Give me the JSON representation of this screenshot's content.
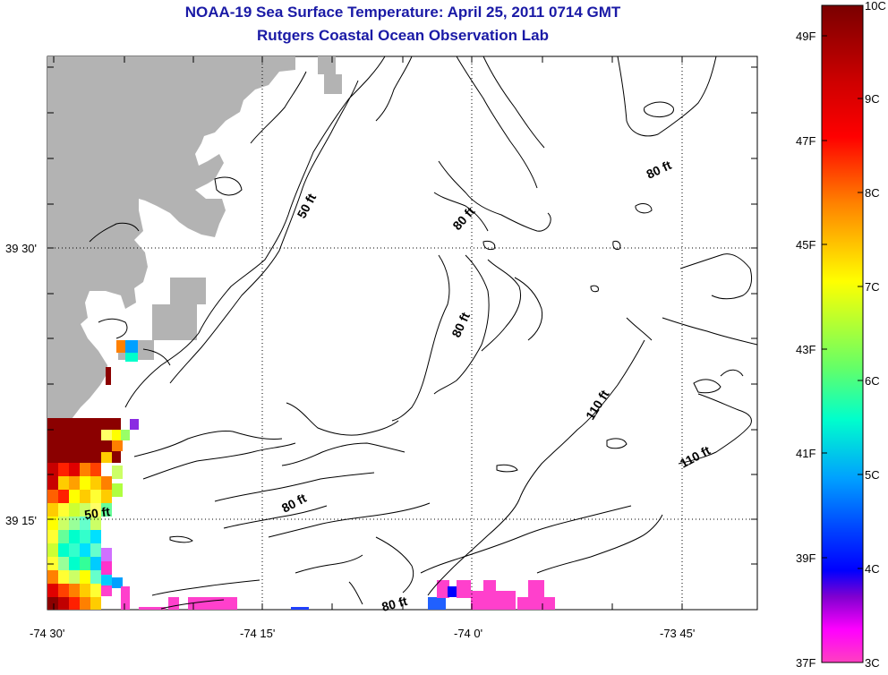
{
  "title": {
    "line1": "NOAA-19 Sea Surface Temperature:  April 25, 2011 0714 GMT",
    "line2": "Rutgers Coastal Ocean Observation Lab"
  },
  "map": {
    "lat_labels": [
      "39 30'",
      "39 15'"
    ],
    "lon_labels": [
      "-74 30'",
      "-74 15'",
      "-74 0'",
      "-73 45'"
    ],
    "contour_labels": [
      "50 ft",
      "80 ft",
      "80 ft",
      "80 ft",
      "110 ft",
      "110 ft",
      "80 ft",
      "50 ft",
      "80 ft"
    ],
    "land_color": "#b3b3b3",
    "contour_color": "#000000"
  },
  "colorbar": {
    "celsius_labels": [
      "10C",
      "9C",
      "8C",
      "7C",
      "6C",
      "5C",
      "4C",
      "3C"
    ],
    "fahrenheit_labels": [
      "49F",
      "47F",
      "45F",
      "43F",
      "41F",
      "39F",
      "37F"
    ],
    "colors": [
      "#8b0000",
      "#ff0000",
      "#ff8c00",
      "#ffff00",
      "#7fff00",
      "#00ffcc",
      "#00bfff",
      "#0000ff",
      "#8a2be2",
      "#ff1493"
    ]
  }
}
